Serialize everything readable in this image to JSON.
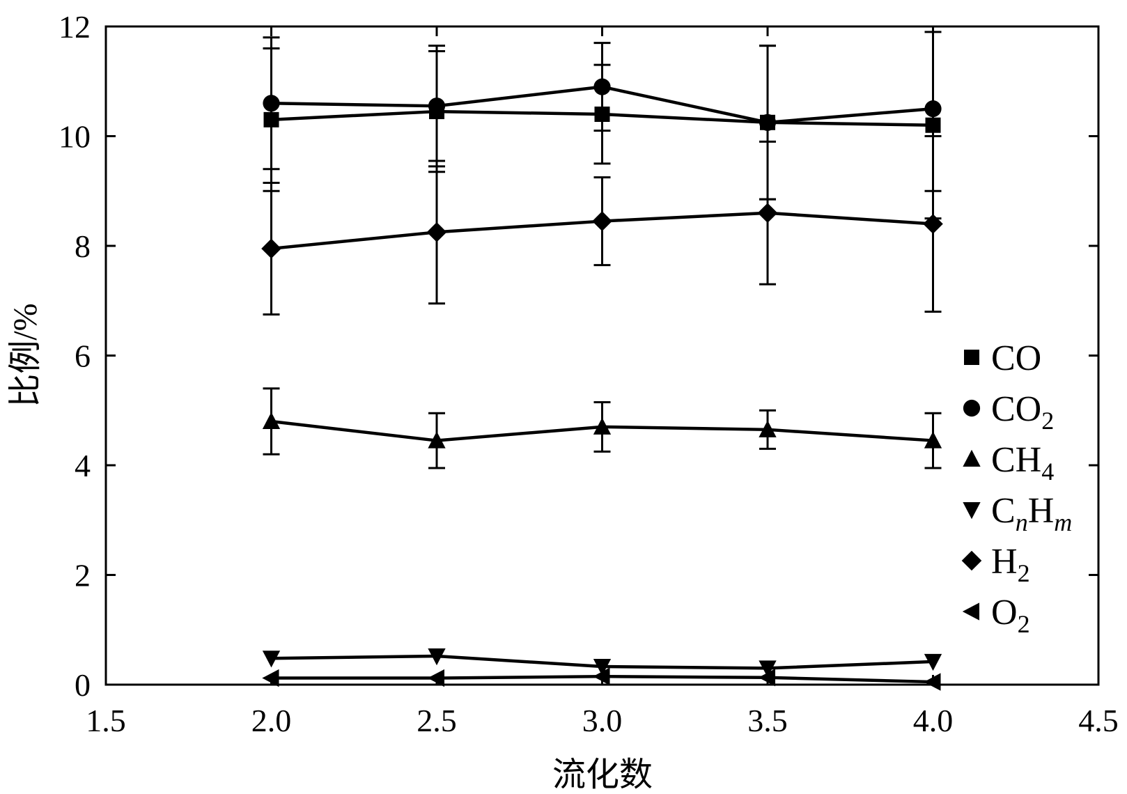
{
  "chart_data": {
    "type": "line",
    "xlabel": "流化数",
    "ylabel": "比例/%",
    "xlim": [
      1.5,
      4.5
    ],
    "ylim": [
      0,
      12
    ],
    "xticks": [
      "1.5",
      "2.0",
      "2.5",
      "3.0",
      "3.5",
      "4.0",
      "4.5"
    ],
    "yticks": [
      "0",
      "2",
      "4",
      "6",
      "8",
      "10",
      "12"
    ],
    "x": [
      2.0,
      2.5,
      3.0,
      3.5,
      4.0
    ],
    "grid": false,
    "legend_position": "right",
    "series": [
      {
        "name": "CO",
        "legend_main": "CO",
        "legend_sub": "",
        "legend_tail": "",
        "marker": "square",
        "values": [
          10.3,
          10.45,
          10.4,
          10.25,
          10.2
        ],
        "errors": [
          1.3,
          1.1,
          0.9,
          1.4,
          1.7
        ]
      },
      {
        "name": "CO2",
        "legend_main": "CO",
        "legend_sub": "2",
        "legend_tail": "",
        "marker": "circle",
        "values": [
          10.6,
          10.55,
          10.9,
          10.25,
          10.5
        ],
        "errors": [
          1.2,
          1.1,
          0.8,
          1.4,
          1.5
        ]
      },
      {
        "name": "CH4",
        "legend_main": "CH",
        "legend_sub": "4",
        "legend_tail": "",
        "marker": "triangle-up",
        "values": [
          4.8,
          4.45,
          4.7,
          4.65,
          4.45
        ],
        "errors": [
          0.6,
          0.5,
          0.45,
          0.35,
          0.5
        ]
      },
      {
        "name": "CnHm",
        "legend_main": "C",
        "legend_sub": "n",
        "legend_tail": "H",
        "legend_sub2": "m",
        "marker": "triangle-down",
        "values": [
          0.48,
          0.52,
          0.33,
          0.3,
          0.42
        ],
        "errors": [
          0,
          0,
          0,
          0,
          0
        ]
      },
      {
        "name": "H2",
        "legend_main": "H",
        "legend_sub": "2",
        "legend_tail": "",
        "marker": "diamond",
        "values": [
          7.95,
          8.25,
          8.45,
          8.6,
          8.4
        ],
        "errors": [
          1.2,
          1.3,
          0.8,
          1.3,
          1.6
        ]
      },
      {
        "name": "O2",
        "legend_main": "O",
        "legend_sub": "2",
        "legend_tail": "",
        "marker": "triangle-left",
        "values": [
          0.12,
          0.12,
          0.15,
          0.13,
          0.05
        ],
        "errors": [
          0,
          0,
          0,
          0,
          0
        ]
      }
    ]
  }
}
